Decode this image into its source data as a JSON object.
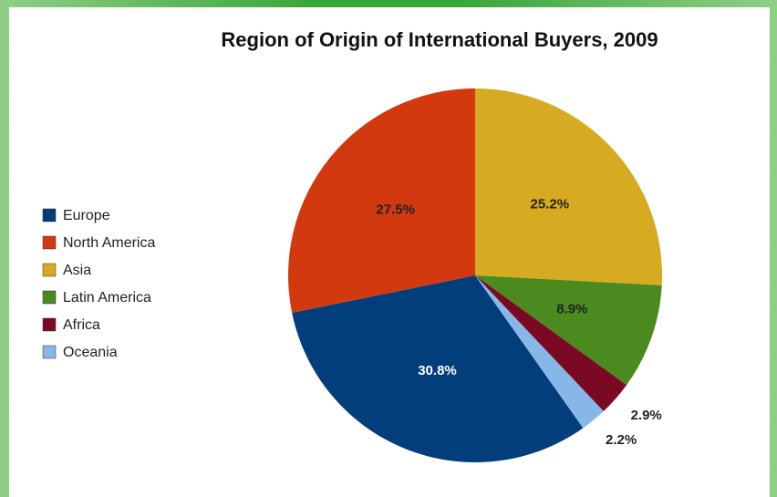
{
  "chart_data": {
    "type": "pie",
    "title": "Region of Origin of International Buyers, 2009",
    "categories": [
      "Europe",
      "North America",
      "Asia",
      "Latin America",
      "Africa",
      "Oceania"
    ],
    "values": [
      30.8,
      27.5,
      25.2,
      8.9,
      2.9,
      2.2
    ],
    "value_labels": [
      "30.8%",
      "27.5%",
      "25.2%",
      "8.9%",
      "2.9%",
      "2.2%"
    ],
    "colors": [
      "#023e7c",
      "#d2390f",
      "#d6ab22",
      "#4b8a1f",
      "#7a0a24",
      "#87b7e6"
    ],
    "legend": "left"
  }
}
